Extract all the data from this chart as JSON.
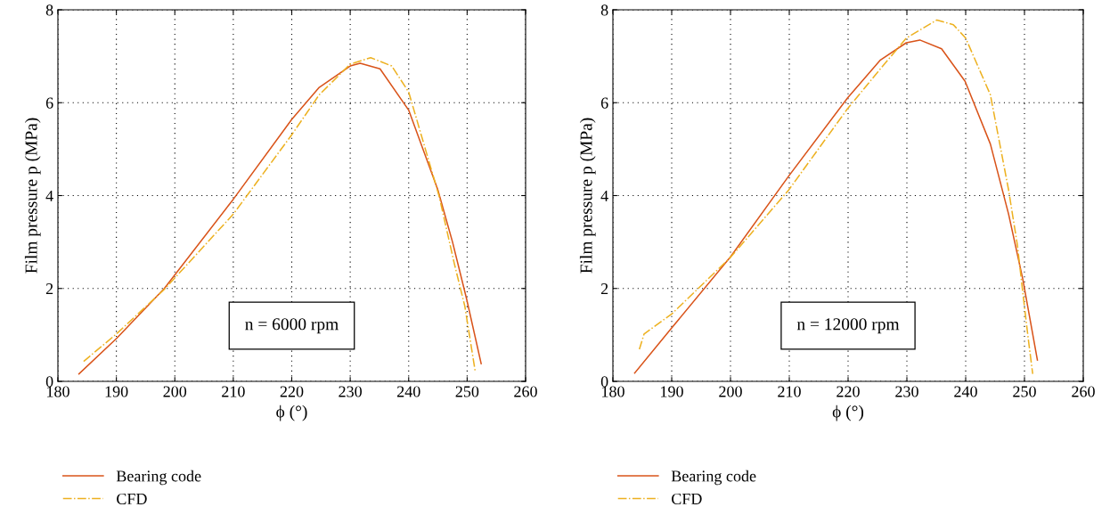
{
  "chart_data": [
    {
      "type": "line",
      "xlabel": "ϕ (°)",
      "ylabel": "Film pressure p (MPa)",
      "xlim": [
        180,
        260
      ],
      "xticks": [
        180,
        190,
        200,
        210,
        220,
        230,
        240,
        250,
        260
      ],
      "ylim": [
        0,
        8
      ],
      "yticks": [
        0,
        2,
        4,
        6,
        8
      ],
      "grid": true,
      "legend": "bottom left",
      "annotations": [
        "n = 6000 rpm"
      ],
      "series": [
        {
          "name": "Bearing code",
          "color": "#d95319",
          "line_style": "solid",
          "x": [
            183.6,
            190,
            198.2,
            210,
            220,
            224.7,
            230,
            231.7,
            235.1,
            240,
            245,
            247.5,
            249.9,
            252.4
          ],
          "values": [
            0.16,
            0.92,
            2.0,
            3.92,
            5.64,
            6.33,
            6.79,
            6.85,
            6.73,
            5.84,
            4.12,
            3.0,
            1.78,
            0.38
          ]
        },
        {
          "name": "CFD",
          "color": "#edb120",
          "line_style": "dashdot",
          "x": [
            184.4,
            190,
            198.2,
            210,
            220,
            224.7,
            230,
            233.5,
            237.1,
            240,
            245.2,
            247.8,
            249.6,
            251.4
          ],
          "values": [
            0.43,
            1.02,
            1.98,
            3.6,
            5.31,
            6.17,
            6.83,
            6.97,
            6.79,
            6.23,
            3.99,
            2.54,
            1.62,
            0.2
          ]
        }
      ]
    },
    {
      "type": "line",
      "xlabel": "ϕ (°)",
      "ylabel": "Film pressure p (MPa)",
      "xlim": [
        180,
        260
      ],
      "xticks": [
        180,
        190,
        200,
        210,
        220,
        230,
        240,
        250,
        260
      ],
      "ylim": [
        0,
        8
      ],
      "yticks": [
        0,
        2,
        4,
        6,
        8
      ],
      "grid": true,
      "legend": "bottom left",
      "annotations": [
        "n = 12000 rpm"
      ],
      "series": [
        {
          "name": "Bearing code",
          "color": "#d95319",
          "line_style": "solid",
          "x": [
            183.7,
            190,
            200,
            209.9,
            219.9,
            225.5,
            229.9,
            232.2,
            235.9,
            239.9,
            244.2,
            247.3,
            249.7,
            252.2
          ],
          "values": [
            0.18,
            1.15,
            2.68,
            4.42,
            6.1,
            6.92,
            7.29,
            7.35,
            7.16,
            6.46,
            5.11,
            3.6,
            2.21,
            0.46
          ]
        },
        {
          "name": "CFD",
          "color": "#edb120",
          "line_style": "dashdot",
          "x": [
            184.5,
            185.3,
            190,
            200,
            209.9,
            219.9,
            225.5,
            229.9,
            235.1,
            237.9,
            240,
            244.2,
            247.3,
            248.8,
            249.6,
            250.6,
            251.4
          ],
          "values": [
            0.69,
            1.02,
            1.45,
            2.67,
            4.12,
            5.87,
            6.73,
            7.39,
            7.78,
            7.68,
            7.39,
            6.17,
            4.12,
            2.93,
            2.04,
            0.96,
            0.16
          ]
        }
      ]
    }
  ]
}
